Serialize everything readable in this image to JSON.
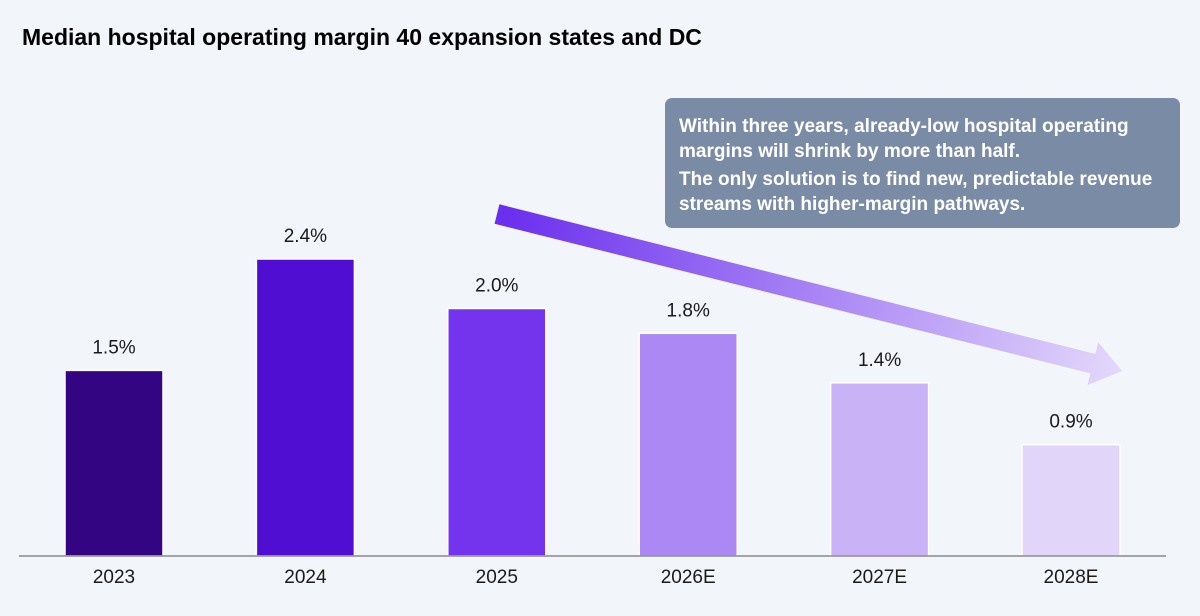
{
  "chart_data": {
    "type": "bar",
    "title": "Median hospital operating margin 40 expansion states and DC",
    "categories": [
      "2023",
      "2024",
      "2025",
      "2026E",
      "2027E",
      "2028E"
    ],
    "values": [
      1.5,
      2.4,
      2.0,
      1.8,
      1.4,
      0.9
    ],
    "value_labels": [
      "1.5%",
      "2.4%",
      "2.0%",
      "1.8%",
      "1.4%",
      "0.9%"
    ],
    "colors": [
      "#330582",
      "#4f0ed2",
      "#7434ee",
      "#ab88f4",
      "#cab2f6",
      "#e2d5fa"
    ],
    "xlabel": "",
    "ylabel": "",
    "ylim": [
      0,
      2.4
    ],
    "grid": false,
    "annotation": {
      "lines": [
        "Within three years, already-low hospital operating margins will shrink by more than half.",
        "The only solution is to find new, predictable revenue streams with higher-margin pathways."
      ],
      "arrow_direction": "down-right",
      "arrow_color_start": "#6a2ded",
      "arrow_color_end": "#e4d8fb",
      "box_color": "#7a8ba6"
    }
  }
}
